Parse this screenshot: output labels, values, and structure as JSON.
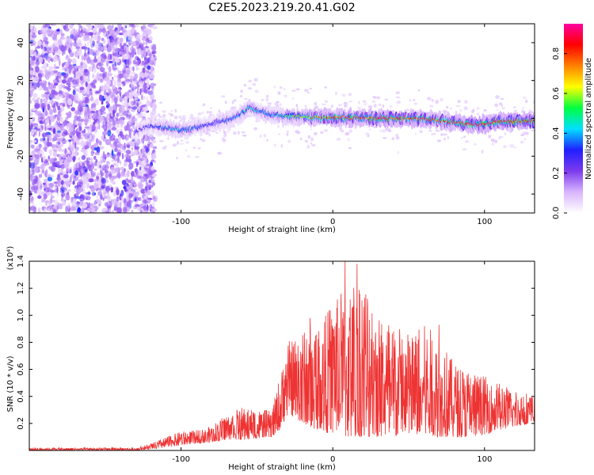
{
  "title": "C2E5.2023.219.20.41.G02",
  "chart_data": [
    {
      "type": "heatmap",
      "xlabel": "Height of straight line (km)",
      "ylabel": "Frequency (Hz)",
      "xlim": [
        -200,
        133
      ],
      "ylim": [
        -50,
        50
      ],
      "xticks": [
        -100,
        0,
        100
      ],
      "xtick_labels": [
        "-100",
        "0",
        "100"
      ],
      "yticks": [
        -40,
        -20,
        0,
        20,
        40
      ],
      "ytick_labels": [
        "-40",
        "-20",
        "0",
        "20",
        "40"
      ],
      "colorbar": {
        "label": "Normalized spectral amplitude",
        "range": [
          0,
          0.95
        ],
        "ticks": [
          0,
          0.2,
          0.4,
          0.6,
          0.8
        ],
        "tick_labels": [
          "0.0",
          "0.2",
          "0.4",
          "0.6",
          "0.8"
        ],
        "colormap": [
          "#ffffff",
          "#d8b4fe",
          "#7c3aed",
          "#2020ff",
          "#00e0ff",
          "#00ff40",
          "#ffff00",
          "#ff8000",
          "#ff0000",
          "#ff00a0"
        ]
      },
      "noise_region": {
        "x": [
          -200,
          -117
        ],
        "amplitude": 0.15
      },
      "ridge": {
        "x": [
          -130,
          -120,
          -110,
          -100,
          -90,
          -80,
          -70,
          -60,
          -55,
          -50,
          -45,
          -40,
          -30,
          -20,
          -10,
          0,
          10,
          20,
          30,
          40,
          50,
          60,
          70,
          80,
          90,
          100,
          110,
          120,
          133
        ],
        "frequency": [
          -7,
          -4,
          -5,
          -6,
          -5,
          -3,
          -1,
          2,
          6,
          4,
          3,
          2,
          1,
          1,
          0.5,
          0.5,
          0.5,
          0.3,
          0,
          0,
          0,
          -0.5,
          -1,
          -2,
          -3,
          -3,
          -1.5,
          -1.5,
          -1.5
        ],
        "amplitude": [
          0.25,
          0.3,
          0.4,
          0.42,
          0.35,
          0.3,
          0.35,
          0.4,
          0.45,
          0.4,
          0.4,
          0.35,
          0.5,
          0.6,
          0.7,
          0.75,
          0.78,
          0.8,
          0.85,
          0.85,
          0.82,
          0.8,
          0.78,
          0.8,
          0.85,
          0.88,
          0.9,
          0.9,
          0.9
        ]
      }
    },
    {
      "type": "line",
      "xlabel": "Height of straight line (km)",
      "ylabel": "SNR (10 * v/v)",
      "y_multiplier": "(x10⁴)",
      "xlim": [
        -200,
        133
      ],
      "ylim": [
        0,
        1.4
      ],
      "xticks": [
        -100,
        0,
        100
      ],
      "xtick_labels": [
        "-100",
        "0",
        "100"
      ],
      "yticks": [
        0.2,
        0.4,
        0.6,
        0.8,
        1.0,
        1.2,
        1.4
      ],
      "ytick_labels": [
        "0.2",
        "0.4",
        "0.6",
        "0.8",
        "1.0",
        "1.2",
        "1.4"
      ],
      "color": "#ee3333",
      "envelope": {
        "x": [
          -200,
          -130,
          -120,
          -110,
          -100,
          -90,
          -80,
          -70,
          -60,
          -50,
          -40,
          -35,
          -30,
          -25,
          -20,
          -10,
          0,
          10,
          20,
          30,
          40,
          50,
          60,
          70,
          80,
          90,
          100,
          110,
          120,
          133
        ],
        "low": [
          0.0,
          0.0,
          0.01,
          0.02,
          0.04,
          0.05,
          0.06,
          0.08,
          0.08,
          0.09,
          0.1,
          0.15,
          0.25,
          0.25,
          0.2,
          0.15,
          0.12,
          0.1,
          0.1,
          0.1,
          0.1,
          0.12,
          0.12,
          0.1,
          0.1,
          0.1,
          0.12,
          0.15,
          0.18,
          0.2
        ],
        "high": [
          0.02,
          0.02,
          0.05,
          0.1,
          0.14,
          0.15,
          0.18,
          0.28,
          0.32,
          0.3,
          0.3,
          0.55,
          0.8,
          0.85,
          0.9,
          0.95,
          1.1,
          1.25,
          1.3,
          1.05,
          0.95,
          0.9,
          0.95,
          0.85,
          0.65,
          0.6,
          0.55,
          0.5,
          0.45,
          0.42
        ]
      },
      "peaks": [
        {
          "x": 8,
          "y": 1.4
        },
        {
          "x": 16,
          "y": 1.38
        },
        {
          "x": -15,
          "y": 0.98
        },
        {
          "x": 70,
          "y": 0.93
        }
      ]
    }
  ]
}
